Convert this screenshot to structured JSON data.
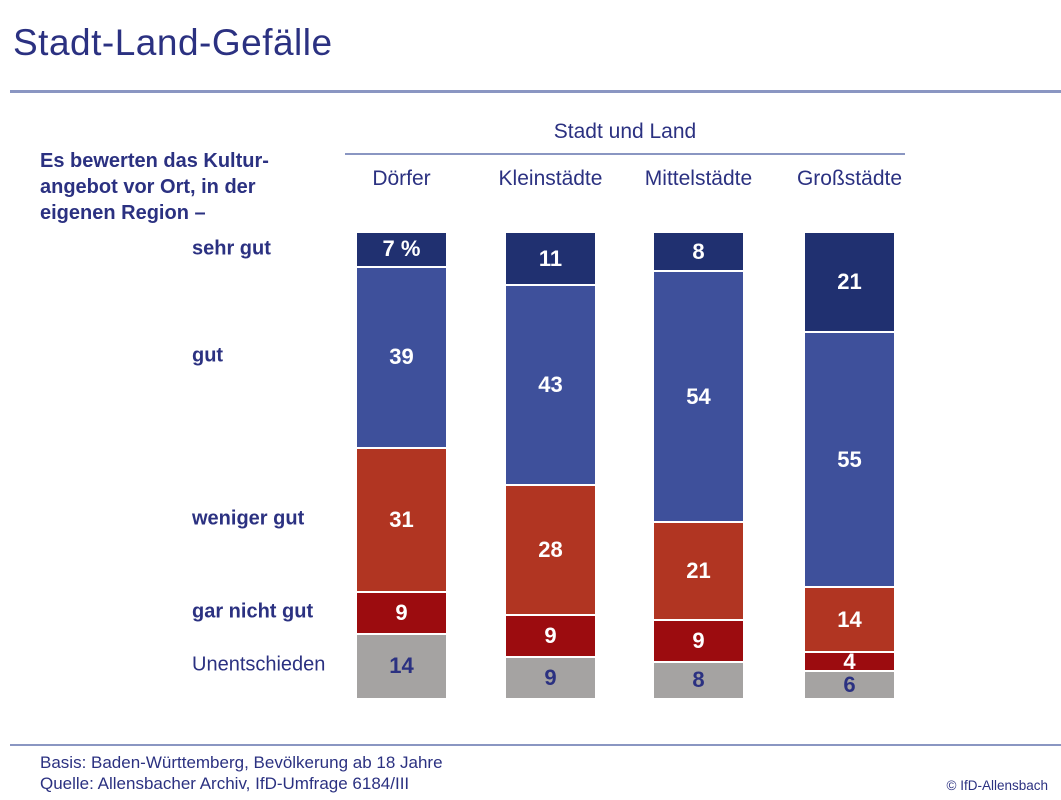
{
  "page": {
    "title": "Stadt-Land-Gefälle",
    "copyright": "© IfD-Allensbach"
  },
  "intro": {
    "line1": "Es bewerten das Kultur-",
    "line2": "angebot vor Ort, in der",
    "line3": "eigenen Region –"
  },
  "footer": {
    "basis": "Basis: Baden-Württemberg, Bevölkerung ab 18 Jahre",
    "quelle": "Quelle: Allensbacher Archiv, IfD-Umfrage 6184/III"
  },
  "colors": {
    "text_navy": "#2b3181",
    "rule_blue": "#8a96c2",
    "background": "#ffffff",
    "segment_separator": "#ffffff"
  },
  "chart_data": {
    "type": "bar",
    "stacked": true,
    "unit": "percent",
    "ylim": [
      0,
      100
    ],
    "group_header": "Stadt und Land",
    "categories": [
      "Dörfer",
      "Kleinstädte",
      "Mittelstädte",
      "Großstädte"
    ],
    "first_value_suffix": " %",
    "series": [
      {
        "name": "sehr gut",
        "values": [
          7,
          11,
          8,
          21
        ],
        "color": "#203070",
        "label_color": "#ffffff",
        "label_bold": true
      },
      {
        "name": "gut",
        "values": [
          39,
          43,
          54,
          55
        ],
        "color": "#3e509b",
        "label_color": "#ffffff",
        "label_bold": true
      },
      {
        "name": "weniger gut",
        "values": [
          31,
          28,
          21,
          14
        ],
        "color": "#b13522",
        "label_color": "#ffffff",
        "label_bold": true
      },
      {
        "name": "gar nicht gut",
        "values": [
          9,
          9,
          9,
          4
        ],
        "color": "#9c0c0f",
        "label_color": "#ffffff",
        "label_bold": true
      },
      {
        "name": "Unentschieden",
        "values": [
          14,
          9,
          8,
          6
        ],
        "color": "#a5a3a2",
        "label_color": "#2b3181",
        "label_bold": false
      }
    ]
  }
}
